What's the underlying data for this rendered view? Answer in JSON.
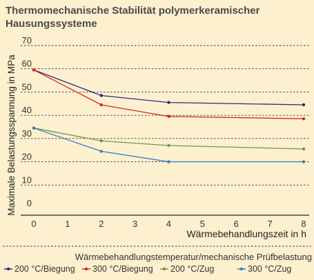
{
  "chart_data": {
    "type": "line",
    "title": "Thermomechanische Stabilität polymerkeramischer Hausungssysteme",
    "xlabel": "Wärmebehandlungszeit in h",
    "ylabel": "Maximale Belastungsspannung in MPa",
    "x_ticks": [
      0,
      1,
      2,
      3,
      4,
      5,
      6,
      7,
      8
    ],
    "y_ticks": [
      0,
      10,
      20,
      30,
      40,
      50,
      60,
      70
    ],
    "xlim": [
      0,
      8
    ],
    "ylim": [
      0,
      70
    ],
    "grid": "horizontal-dashed",
    "legend_title": "Wärmebehandlungstemperatur/mechanische Prüfbelastung",
    "legend_position": "bottom",
    "series": [
      {
        "name": "200 °C/Biegung",
        "color": "#2e2a7a",
        "x": [
          0,
          2,
          4,
          8
        ],
        "y": [
          59.5,
          48.5,
          45.5,
          44.5
        ]
      },
      {
        "name": "300 °C/Biegung",
        "color": "#d8232a",
        "x": [
          0,
          2,
          4,
          8
        ],
        "y": [
          59.5,
          44.5,
          39.5,
          38.5
        ]
      },
      {
        "name": "200 °C/Zug",
        "color": "#6a9a4a",
        "x": [
          0,
          2,
          4,
          8
        ],
        "y": [
          34.5,
          29,
          27,
          25.5
        ]
      },
      {
        "name": "300 °C/Zug",
        "color": "#2e7fc0",
        "x": [
          0,
          2,
          4,
          8
        ],
        "y": [
          34.5,
          24.5,
          20,
          20
        ]
      }
    ]
  }
}
